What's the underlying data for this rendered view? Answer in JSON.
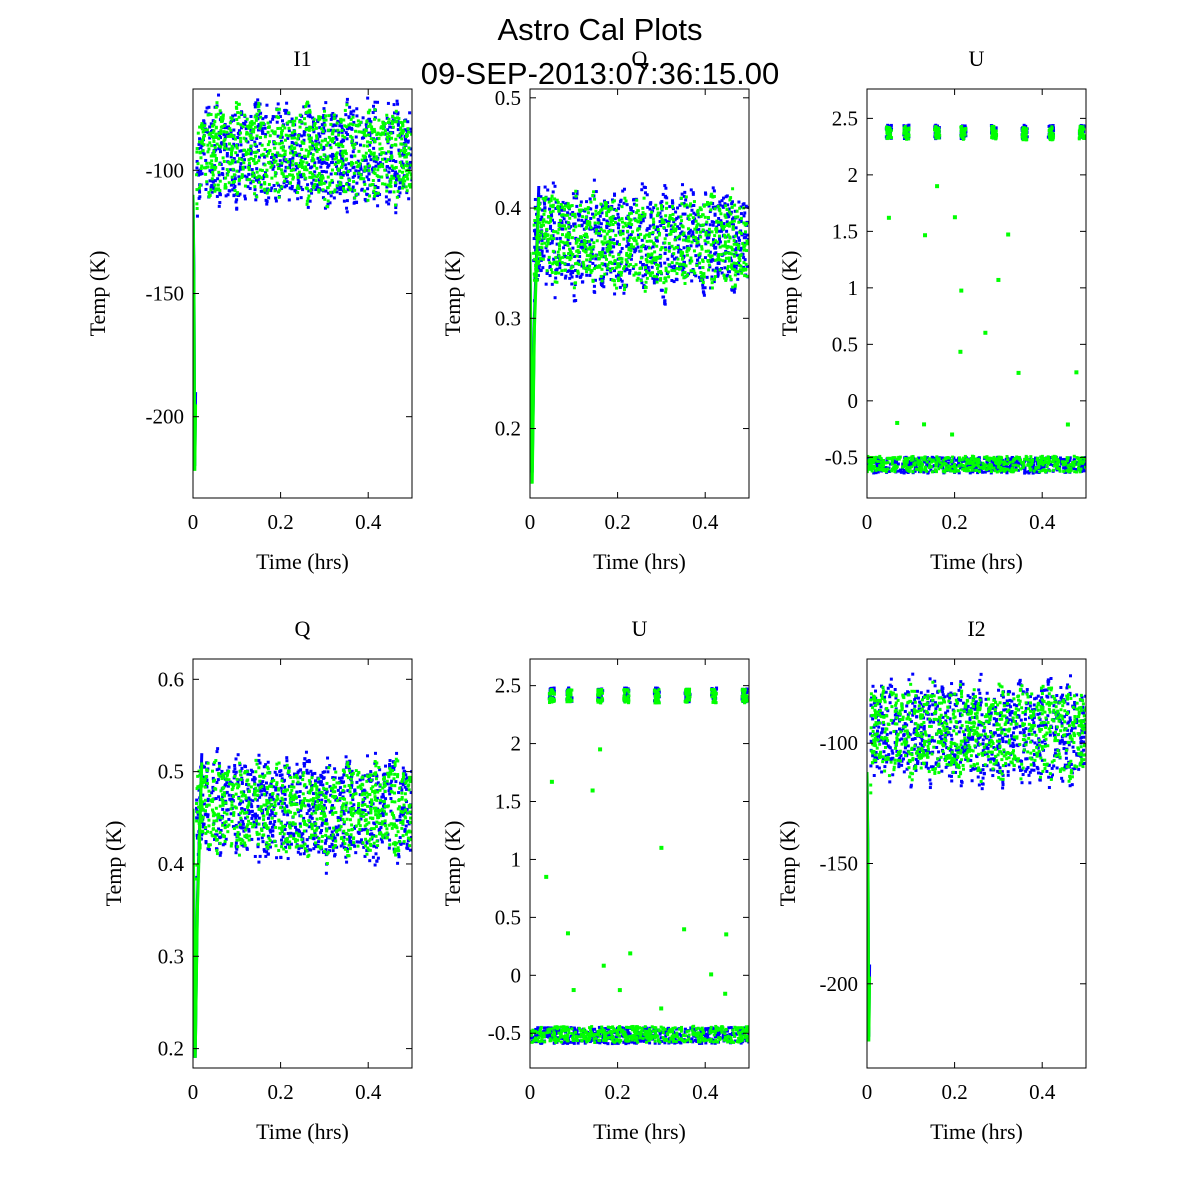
{
  "figure": {
    "title_line1": "Astro Cal Plots",
    "title_line2": "09-SEP-2013:07:36:15.00",
    "series_colors": [
      "#0000ff",
      "#00ff00"
    ]
  },
  "chart_data": [
    {
      "type": "scatter",
      "panel": "I1",
      "title": "I1",
      "xlabel": "Time (hrs)",
      "ylabel": "Temp (K)",
      "xlim": [
        0,
        0.5
      ],
      "ylim": [
        -233,
        -67
      ],
      "xticks": [
        0,
        0.2,
        0.4
      ],
      "xticklabels": [
        "0",
        "0.2",
        "0.4"
      ],
      "yticks": [
        -100,
        -150,
        -200
      ],
      "yticklabels": [
        "-100",
        "-150",
        "-200"
      ],
      "grid": false,
      "series": [
        {
          "color": "#0000ff",
          "x": [
            0,
            0.002,
            0.004,
            0.006,
            0.008,
            0.01,
            0.012,
            0.015,
            0.02,
            0.03,
            0.04,
            0.05,
            0.055,
            0.06,
            0.064,
            0.066,
            0.068,
            0.07,
            0.072,
            0.074,
            0.076,
            0.078,
            0.08,
            0.083,
            0.09,
            0.12,
            0.2,
            0.3,
            0.4,
            0.5
          ],
          "y": [
            -110,
            -140,
            -220,
            -190,
            -130,
            -115,
            -95,
            -89,
            -88,
            -89,
            -90,
            -90,
            -88,
            -84,
            -76,
            -71,
            -73,
            -76,
            -80,
            -95,
            -113,
            -110,
            -93,
            -91,
            -90.5,
            -91,
            -91.5,
            -92.2,
            -93,
            -93.5
          ]
        },
        {
          "color": "#00ff00",
          "x": [
            0,
            0.002,
            0.004,
            0.006,
            0.008,
            0.01,
            0.012,
            0.015,
            0.02,
            0.03,
            0.04,
            0.05,
            0.055,
            0.06,
            0.064,
            0.066,
            0.068,
            0.07,
            0.072,
            0.074,
            0.076,
            0.078,
            0.08,
            0.083,
            0.09,
            0.12,
            0.2,
            0.3,
            0.4,
            0.5
          ],
          "y": [
            -110,
            -145,
            -222,
            -195,
            -140,
            -118,
            -96,
            -89,
            -87,
            -88,
            -89,
            -89,
            -87,
            -82,
            -73,
            -70,
            -71,
            -76,
            -92,
            -107,
            -116,
            -105,
            -92,
            -90.5,
            -90.5,
            -91,
            -91.5,
            -92.2,
            -93,
            -93.5
          ]
        }
      ]
    },
    {
      "type": "scatter",
      "panel": "Q",
      "title": "Q",
      "xlabel": "Time (hrs)",
      "ylabel": "Temp (K)",
      "xlim": [
        0,
        0.5
      ],
      "ylim": [
        0.137,
        0.508
      ],
      "xticks": [
        0,
        0.2,
        0.4
      ],
      "xticklabels": [
        "0",
        "0.2",
        "0.4"
      ],
      "yticks": [
        0.5,
        0.4,
        0.3,
        0.2
      ],
      "yticklabels": [
        "0.5",
        "0.4",
        "0.3",
        "0.2"
      ],
      "grid": false,
      "series": [
        {
          "color": "#0000ff",
          "x": [
            0,
            0.005,
            0.01,
            0.02,
            0.05,
            0.1,
            0.15,
            0.2,
            0.25,
            0.3,
            0.35,
            0.4,
            0.45,
            0.5
          ],
          "y": [
            0.35,
            0.16,
            0.3,
            0.42,
            0.39,
            0.36,
            0.4,
            0.35,
            0.38,
            0.34,
            0.39,
            0.36,
            0.4,
            0.37
          ]
        },
        {
          "color": "#00ff00",
          "x": [
            0,
            0.005,
            0.01,
            0.02,
            0.05,
            0.1,
            0.15,
            0.2,
            0.25,
            0.3,
            0.35,
            0.4,
            0.45,
            0.5
          ],
          "y": [
            0.36,
            0.15,
            0.29,
            0.41,
            0.4,
            0.37,
            0.39,
            0.36,
            0.37,
            0.35,
            0.38,
            0.37,
            0.39,
            0.36
          ]
        }
      ]
    },
    {
      "type": "scatter",
      "panel": "U",
      "title": "U",
      "xlabel": "Time (hrs)",
      "ylabel": "Temp (K)",
      "xlim": [
        0,
        0.5
      ],
      "ylim": [
        -0.86,
        2.76
      ],
      "xticks": [
        0,
        0.2,
        0.4
      ],
      "xticklabels": [
        "0",
        "0.2",
        "0.4"
      ],
      "yticks": [
        2.5,
        2,
        1.5,
        1,
        0.5,
        0,
        -0.5
      ],
      "yticklabels": [
        "2.5",
        "2",
        "1.5",
        "1",
        "0.5",
        "0",
        "-0.5"
      ],
      "grid": false,
      "series": [
        {
          "color": "#0000ff",
          "x": [
            0.05,
            0.09,
            0.16,
            0.22,
            0.29,
            0.36,
            0.42,
            0.49,
            0.0,
            0.1,
            0.2,
            0.3,
            0.4,
            0.5
          ],
          "y": [
            2.38,
            2.38,
            2.38,
            2.38,
            2.38,
            2.38,
            2.38,
            2.38,
            -0.6,
            -0.57,
            -0.58,
            -0.57,
            -0.58,
            -0.57
          ]
        },
        {
          "color": "#00ff00",
          "x": [
            0.05,
            0.09,
            0.16,
            0.22,
            0.29,
            0.36,
            0.42,
            0.49,
            0.16,
            0.05,
            0.3,
            0.0,
            0.1,
            0.2,
            0.3,
            0.4,
            0.5
          ],
          "y": [
            2.37,
            2.37,
            2.37,
            2.37,
            2.37,
            2.37,
            2.37,
            2.37,
            1.9,
            1.62,
            1.07,
            -0.56,
            -0.56,
            -0.56,
            -0.56,
            -0.56,
            -0.56
          ]
        }
      ]
    },
    {
      "type": "scatter",
      "panel": "Q",
      "title": "Q",
      "xlabel": "Time (hrs)",
      "ylabel": "Temp (K)",
      "xlim": [
        0,
        0.5
      ],
      "ylim": [
        0.179,
        0.622
      ],
      "xticks": [
        0,
        0.2,
        0.4
      ],
      "xticklabels": [
        "0",
        "0.2",
        "0.4"
      ],
      "yticks": [
        0.6,
        0.5,
        0.4,
        0.3,
        0.2
      ],
      "yticklabels": [
        "0.6",
        "0.5",
        "0.4",
        "0.3",
        "0.2"
      ],
      "grid": false,
      "series": [
        {
          "color": "#0000ff",
          "x": [
            0,
            0.005,
            0.01,
            0.02,
            0.05,
            0.1,
            0.15,
            0.2,
            0.25,
            0.3,
            0.35,
            0.4,
            0.45,
            0.5
          ],
          "y": [
            0.45,
            0.19,
            0.36,
            0.52,
            0.48,
            0.44,
            0.49,
            0.43,
            0.47,
            0.42,
            0.48,
            0.44,
            0.49,
            0.46
          ]
        },
        {
          "color": "#00ff00",
          "x": [
            0,
            0.005,
            0.01,
            0.02,
            0.05,
            0.1,
            0.15,
            0.2,
            0.25,
            0.3,
            0.35,
            0.4,
            0.45,
            0.5
          ],
          "y": [
            0.46,
            0.19,
            0.35,
            0.51,
            0.49,
            0.45,
            0.48,
            0.44,
            0.46,
            0.43,
            0.47,
            0.45,
            0.48,
            0.45
          ]
        }
      ]
    },
    {
      "type": "scatter",
      "panel": "U",
      "title": "U",
      "xlabel": "Time (hrs)",
      "ylabel": "Temp (K)",
      "xlim": [
        0,
        0.5
      ],
      "ylim": [
        -0.8,
        2.73
      ],
      "xticks": [
        0,
        0.2,
        0.4
      ],
      "xticklabels": [
        "0",
        "0.2",
        "0.4"
      ],
      "yticks": [
        2.5,
        2,
        1.5,
        1,
        0.5,
        0,
        -0.5
      ],
      "yticklabels": [
        "2.5",
        "2",
        "1.5",
        "1",
        "0.5",
        "0",
        "-0.5"
      ],
      "grid": false,
      "series": [
        {
          "color": "#0000ff",
          "x": [
            0.05,
            0.09,
            0.16,
            0.22,
            0.29,
            0.36,
            0.42,
            0.49,
            0.0,
            0.1,
            0.2,
            0.3,
            0.4,
            0.5
          ],
          "y": [
            2.42,
            2.42,
            2.42,
            2.42,
            2.42,
            2.42,
            2.42,
            2.42,
            -0.55,
            -0.52,
            -0.53,
            -0.52,
            -0.53,
            -0.52
          ]
        },
        {
          "color": "#00ff00",
          "x": [
            0.05,
            0.09,
            0.16,
            0.22,
            0.29,
            0.36,
            0.42,
            0.49,
            0.16,
            0.05,
            0.3,
            0.0,
            0.1,
            0.2,
            0.3,
            0.4,
            0.5
          ],
          "y": [
            2.41,
            2.41,
            2.41,
            2.41,
            2.41,
            2.41,
            2.41,
            2.41,
            1.95,
            1.67,
            1.1,
            -0.51,
            -0.51,
            -0.51,
            -0.51,
            -0.51,
            -0.51
          ]
        }
      ]
    },
    {
      "type": "scatter",
      "panel": "I2",
      "title": "I2",
      "xlabel": "Time (hrs)",
      "ylabel": "Temp (K)",
      "xlim": [
        0,
        0.5
      ],
      "ylim": [
        -235,
        -65
      ],
      "xticks": [
        0,
        0.2,
        0.4
      ],
      "xticklabels": [
        "0",
        "0.2",
        "0.4"
      ],
      "yticks": [
        -100,
        -150,
        -200
      ],
      "yticklabels": [
        "-100",
        "-150",
        "-200"
      ],
      "grid": false,
      "series": [
        {
          "color": "#0000ff",
          "x": [
            0,
            0.002,
            0.004,
            0.006,
            0.008,
            0.01,
            0.012,
            0.015,
            0.02,
            0.03,
            0.04,
            0.05,
            0.055,
            0.06,
            0.064,
            0.066,
            0.068,
            0.07,
            0.072,
            0.074,
            0.076,
            0.078,
            0.08,
            0.083,
            0.09,
            0.12,
            0.2,
            0.3,
            0.4,
            0.5
          ],
          "y": [
            -112,
            -142,
            -222,
            -192,
            -132,
            -117,
            -97,
            -91,
            -90,
            -91,
            -92,
            -92,
            -90,
            -86,
            -78,
            -73,
            -75,
            -78,
            -82,
            -97,
            -115,
            -112,
            -95,
            -93,
            -92.5,
            -93,
            -93.5,
            -94.2,
            -95,
            -95.5
          ]
        },
        {
          "color": "#00ff00",
          "x": [
            0,
            0.002,
            0.004,
            0.006,
            0.008,
            0.01,
            0.012,
            0.015,
            0.02,
            0.03,
            0.04,
            0.05,
            0.055,
            0.06,
            0.064,
            0.066,
            0.068,
            0.07,
            0.072,
            0.074,
            0.076,
            0.078,
            0.08,
            0.083,
            0.09,
            0.12,
            0.2,
            0.3,
            0.4,
            0.5
          ],
          "y": [
            -112,
            -147,
            -224,
            -197,
            -142,
            -120,
            -98,
            -91,
            -89,
            -90,
            -91,
            -91,
            -89,
            -84,
            -75,
            -72,
            -73,
            -78,
            -94,
            -109,
            -118,
            -107,
            -94,
            -92.5,
            -92.5,
            -93,
            -93.5,
            -94.2,
            -95,
            -95.5
          ]
        }
      ]
    }
  ]
}
